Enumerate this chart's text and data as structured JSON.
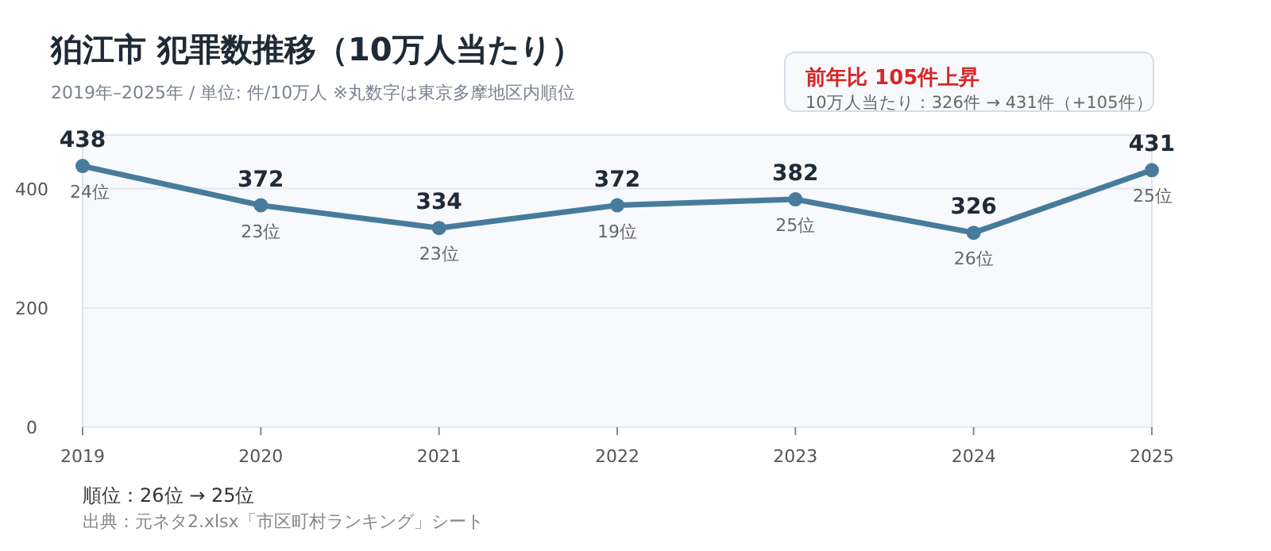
{
  "chart_data": {
    "type": "line",
    "title": "狛江市  犯罪数推移（10万人当たり）",
    "subtitle": "2019年–2025年 / 単位: 件/10万人    ※丸数字は東京多摩地区内順位",
    "x": [
      2019,
      2020,
      2021,
      2022,
      2023,
      2024,
      2025
    ],
    "series": [
      {
        "color": "#477b9b",
        "values": [
          438,
          372,
          334,
          372,
          382,
          326,
          431
        ]
      }
    ],
    "xlim": [
      2019,
      2025
    ],
    "xticks": [
      2019,
      2020,
      2021,
      2022,
      2023,
      2024,
      2025
    ],
    "ylim": [
      0,
      490
    ],
    "yticks": [
      0,
      200,
      400
    ],
    "grid": "y",
    "marker": "circle",
    "line_style": "solid",
    "data_labels": true,
    "annotations": [
      {
        "text": "24位",
        "x": 2019,
        "y": 438
      },
      {
        "text": "23位",
        "x": 2020,
        "y": 372
      },
      {
        "text": "23位",
        "x": 2021,
        "y": 334
      },
      {
        "text": "19位",
        "x": 2022,
        "y": 372
      },
      {
        "text": "25位",
        "x": 2023,
        "y": 382
      },
      {
        "text": "26位",
        "x": 2024,
        "y": 326
      },
      {
        "text": "25位",
        "x": 2025,
        "y": 431
      },
      "前年比  105件上昇",
      "10万人当たり：326件 → 431件（+105件）",
      "順位：26位 → 25位",
      "出典：元ネタ2.xlsx「市区町村ランキング」シート"
    ]
  }
}
